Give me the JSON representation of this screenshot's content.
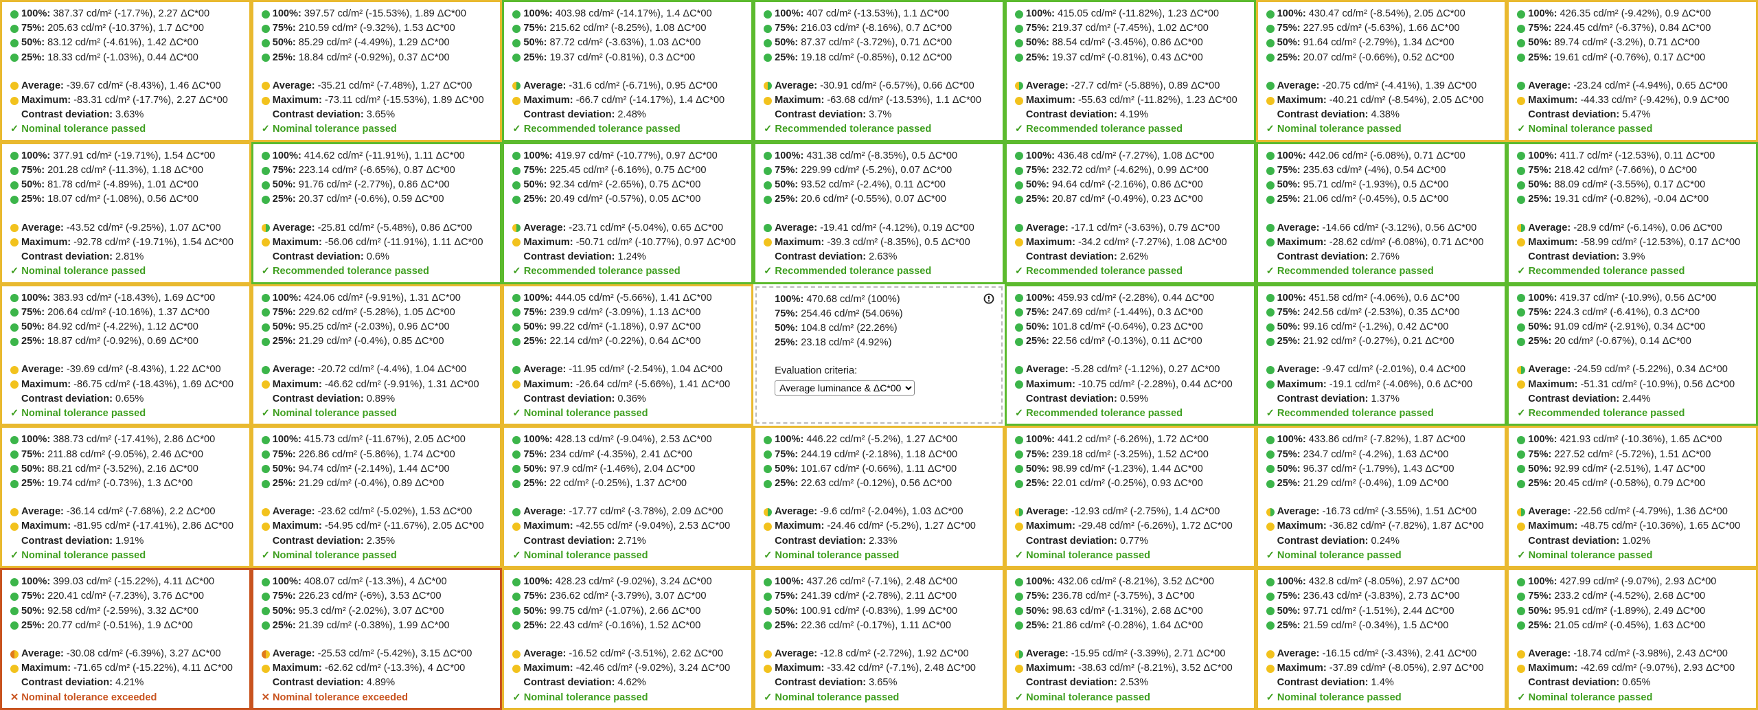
{
  "labels": [
    "100%:",
    "75%:",
    "50%:",
    "25%:",
    "Average:",
    "Maximum:",
    "Contrast deviation:"
  ],
  "rows": [
    [
      {
        "border": "y",
        "dots": "ggggyy",
        "values": [
          "387.37 cd/m² (-17.7%), 2.27 ΔC*00",
          "205.63 cd/m² (-10.37%), 1.7 ΔC*00",
          "83.12 cd/m² (-4.61%), 1.42 ΔC*00",
          "18.33 cd/m² (-1.03%), 0.44 ΔC*00",
          "-39.67 cd/m² (-8.43%), 1.46 ΔC*00",
          "-83.31 cd/m² (-17.7%), 2.27 ΔC*00",
          "3.63%"
        ],
        "status": "✓ Nominal tolerance passed"
      },
      {
        "border": "y",
        "dots": "ggggyy",
        "values": [
          "397.57 cd/m² (-15.53%), 1.89 ΔC*00",
          "210.59 cd/m² (-9.32%), 1.53 ΔC*00",
          "85.29 cd/m² (-4.49%), 1.29 ΔC*00",
          "18.84 cd/m² (-0.92%), 0.37 ΔC*00",
          "-35.21 cd/m² (-7.48%), 1.27 ΔC*00",
          "-73.11 cd/m² (-15.53%), 1.89 ΔC*00",
          "3.65%"
        ],
        "status": "✓ Nominal tolerance passed"
      },
      {
        "border": "g",
        "dots": "gggghy",
        "values": [
          "403.98 cd/m² (-14.17%), 1.4 ΔC*00",
          "215.62 cd/m² (-8.25%), 1.08 ΔC*00",
          "87.72 cd/m² (-3.63%), 1.03 ΔC*00",
          "19.37 cd/m² (-0.81%), 0.3 ΔC*00",
          "-31.6 cd/m² (-6.71%), 0.95 ΔC*00",
          "-66.7 cd/m² (-14.17%), 1.4 ΔC*00",
          "2.48%"
        ],
        "status": "✓ Recommended tolerance passed"
      },
      {
        "border": "g",
        "dots": "gggghy",
        "values": [
          "407 cd/m² (-13.53%), 1.1 ΔC*00",
          "216.03 cd/m² (-8.16%), 0.7 ΔC*00",
          "87.37 cd/m² (-3.72%), 0.71 ΔC*00",
          "19.18 cd/m² (-0.85%), 0.12 ΔC*00",
          "-30.91 cd/m² (-6.57%), 0.66 ΔC*00",
          "-63.68 cd/m² (-13.53%), 1.1 ΔC*00",
          "3.7%"
        ],
        "status": "✓ Recommended tolerance passed"
      },
      {
        "border": "g",
        "dots": "gggghy",
        "values": [
          "415.05 cd/m² (-11.82%), 1.23 ΔC*00",
          "219.37 cd/m² (-7.45%), 1.02 ΔC*00",
          "88.54 cd/m² (-3.45%), 0.86 ΔC*00",
          "19.37 cd/m² (-0.81%), 0.43 ΔC*00",
          "-27.7 cd/m² (-5.88%), 0.89 ΔC*00",
          "-55.63 cd/m² (-11.82%), 1.23 ΔC*00",
          "4.19%"
        ],
        "status": "✓ Recommended tolerance passed"
      },
      {
        "border": "y",
        "dots": "gggggy",
        "values": [
          "430.47 cd/m² (-8.54%), 2.05 ΔC*00",
          "227.95 cd/m² (-5.63%), 1.66 ΔC*00",
          "91.64 cd/m² (-2.79%), 1.34 ΔC*00",
          "20.07 cd/m² (-0.66%), 0.52 ΔC*00",
          "-20.75 cd/m² (-4.41%), 1.39 ΔC*00",
          "-40.21 cd/m² (-8.54%), 2.05 ΔC*00",
          "4.38%"
        ],
        "status": "✓ Nominal tolerance passed"
      },
      {
        "border": "y",
        "dots": "gggggy",
        "values": [
          "426.35 cd/m² (-9.42%), 0.9 ΔC*00",
          "224.45 cd/m² (-6.37%), 0.84 ΔC*00",
          "89.74 cd/m² (-3.2%), 0.71 ΔC*00",
          "19.61 cd/m² (-0.76%), 0.17 ΔC*00",
          "-23.24 cd/m² (-4.94%), 0.65 ΔC*00",
          "-44.33 cd/m² (-9.42%), 0.9 ΔC*00",
          "5.47%"
        ],
        "status": "✓ Nominal tolerance passed"
      }
    ],
    [
      {
        "border": "y",
        "dots": "ggggyy",
        "values": [
          "377.91 cd/m² (-19.71%), 1.54 ΔC*00",
          "201.28 cd/m² (-11.3%), 1.18 ΔC*00",
          "81.78 cd/m² (-4.89%), 1.01 ΔC*00",
          "18.07 cd/m² (-1.08%), 0.56 ΔC*00",
          "-43.52 cd/m² (-9.25%), 1.07 ΔC*00",
          "-92.78 cd/m² (-19.71%), 1.54 ΔC*00",
          "2.81%"
        ],
        "status": "✓ Nominal tolerance passed"
      },
      {
        "border": "g",
        "dots": "gggghy",
        "values": [
          "414.62 cd/m² (-11.91%), 1.11 ΔC*00",
          "223.14 cd/m² (-6.65%), 0.87 ΔC*00",
          "91.76 cd/m² (-2.77%), 0.86 ΔC*00",
          "20.37 cd/m² (-0.6%), 0.59 ΔC*00",
          "-25.81 cd/m² (-5.48%), 0.86 ΔC*00",
          "-56.06 cd/m² (-11.91%), 1.11 ΔC*00",
          "0.6%"
        ],
        "status": "✓ Recommended tolerance passed"
      },
      {
        "border": "g",
        "dots": "gggghy",
        "values": [
          "419.97 cd/m² (-10.77%), 0.97 ΔC*00",
          "225.45 cd/m² (-6.16%), 0.75 ΔC*00",
          "92.34 cd/m² (-2.65%), 0.75 ΔC*00",
          "20.49 cd/m² (-0.57%), 0.05 ΔC*00",
          "-23.71 cd/m² (-5.04%), 0.65 ΔC*00",
          "-50.71 cd/m² (-10.77%), 0.97 ΔC*00",
          "1.24%"
        ],
        "status": "✓ Recommended tolerance passed"
      },
      {
        "border": "g",
        "dots": "gggggy",
        "values": [
          "431.38 cd/m² (-8.35%), 0.5 ΔC*00",
          "229.99 cd/m² (-5.2%), 0.07 ΔC*00",
          "93.52 cd/m² (-2.4%), 0.11 ΔC*00",
          "20.6 cd/m² (-0.55%), 0.07 ΔC*00",
          "-19.41 cd/m² (-4.12%), 0.19 ΔC*00",
          "-39.3 cd/m² (-8.35%), 0.5 ΔC*00",
          "2.63%"
        ],
        "status": "✓ Recommended tolerance passed"
      },
      {
        "border": "g",
        "dots": "gggggy",
        "values": [
          "436.48 cd/m² (-7.27%), 1.08 ΔC*00",
          "232.72 cd/m² (-4.62%), 0.99 ΔC*00",
          "94.64 cd/m² (-2.16%), 0.86 ΔC*00",
          "20.87 cd/m² (-0.49%), 0.23 ΔC*00",
          "-17.1 cd/m² (-3.63%), 0.79 ΔC*00",
          "-34.2 cd/m² (-7.27%), 1.08 ΔC*00",
          "2.62%"
        ],
        "status": "✓ Recommended tolerance passed"
      },
      {
        "border": "g",
        "dots": "gggggg",
        "values": [
          "442.06 cd/m² (-6.08%), 0.71 ΔC*00",
          "235.63 cd/m² (-4%), 0.54 ΔC*00",
          "95.71 cd/m² (-1.93%), 0.5 ΔC*00",
          "21.06 cd/m² (-0.45%), 0.5 ΔC*00",
          "-14.66 cd/m² (-3.12%), 0.56 ΔC*00",
          "-28.62 cd/m² (-6.08%), 0.71 ΔC*00",
          "2.76%"
        ],
        "status": "✓ Recommended tolerance passed"
      },
      {
        "border": "g",
        "dots": "gggghy",
        "values": [
          "411.7 cd/m² (-12.53%), 0.11 ΔC*00",
          "218.42 cd/m² (-7.66%), 0 ΔC*00",
          "88.09 cd/m² (-3.55%), 0.17 ΔC*00",
          "19.31 cd/m² (-0.82%), -0.04 ΔC*00",
          "-28.9 cd/m² (-6.14%), 0.06 ΔC*00",
          "-58.99 cd/m² (-12.53%), 0.17 ΔC*00",
          "3.9%"
        ],
        "status": "✓ Recommended tolerance passed"
      }
    ],
    [
      {
        "border": "y",
        "dots": "ggggyy",
        "values": [
          "383.93 cd/m² (-18.43%), 1.69 ΔC*00",
          "206.64 cd/m² (-10.16%), 1.37 ΔC*00",
          "84.92 cd/m² (-4.22%), 1.12 ΔC*00",
          "18.87 cd/m² (-0.92%), 0.69 ΔC*00",
          "-39.69 cd/m² (-8.43%), 1.22 ΔC*00",
          "-86.75 cd/m² (-18.43%), 1.69 ΔC*00",
          "0.65%"
        ],
        "status": "✓ Nominal tolerance passed"
      },
      {
        "border": "y",
        "dots": "gggggy",
        "values": [
          "424.06 cd/m² (-9.91%), 1.31 ΔC*00",
          "229.62 cd/m² (-5.28%), 1.05 ΔC*00",
          "95.25 cd/m² (-2.03%), 0.96 ΔC*00",
          "21.29 cd/m² (-0.4%), 0.85 ΔC*00",
          "-20.72 cd/m² (-4.4%), 1.04 ΔC*00",
          "-46.62 cd/m² (-9.91%), 1.31 ΔC*00",
          "0.89%"
        ],
        "status": "✓ Nominal tolerance passed"
      },
      {
        "border": "y",
        "dots": "gggggy",
        "values": [
          "444.05 cd/m² (-5.66%), 1.41 ΔC*00",
          "239.9 cd/m² (-3.09%), 1.13 ΔC*00",
          "99.22 cd/m² (-1.18%), 0.97 ΔC*00",
          "22.14 cd/m² (-0.22%), 0.64 ΔC*00",
          "-11.95 cd/m² (-2.54%), 1.04 ΔC*00",
          "-26.64 cd/m² (-5.66%), 1.41 ΔC*00",
          "0.36%"
        ],
        "status": "✓ Nominal tolerance passed"
      },
      {
        "reference": {
          "values": [
            "470.68 cd/m² (100%)",
            "254.46 cd/m² (54.06%)",
            "104.8 cd/m² (22.26%)",
            "23.18 cd/m² (4.92%)"
          ],
          "criteria_label": "Evaluation criteria:",
          "criteria": "Average luminance & ΔC*00"
        }
      },
      {
        "border": "g",
        "dots": "gggggg",
        "values": [
          "459.93 cd/m² (-2.28%), 0.44 ΔC*00",
          "247.69 cd/m² (-1.44%), 0.3 ΔC*00",
          "101.8 cd/m² (-0.64%), 0.23 ΔC*00",
          "22.56 cd/m² (-0.13%), 0.11 ΔC*00",
          "-5.28 cd/m² (-1.12%), 0.27 ΔC*00",
          "-10.75 cd/m² (-2.28%), 0.44 ΔC*00",
          "0.59%"
        ],
        "status": "✓ Recommended tolerance passed"
      },
      {
        "border": "g",
        "dots": "gggggg",
        "values": [
          "451.58 cd/m² (-4.06%), 0.6 ΔC*00",
          "242.56 cd/m² (-2.53%), 0.35 ΔC*00",
          "99.16 cd/m² (-1.2%), 0.42 ΔC*00",
          "21.92 cd/m² (-0.27%), 0.21 ΔC*00",
          "-9.47 cd/m² (-2.01%), 0.4 ΔC*00",
          "-19.1 cd/m² (-4.06%), 0.6 ΔC*00",
          "1.37%"
        ],
        "status": "✓ Recommended tolerance passed"
      },
      {
        "border": "g",
        "dots": "gggghy",
        "values": [
          "419.37 cd/m² (-10.9%), 0.56 ΔC*00",
          "224.3 cd/m² (-6.41%), 0.3 ΔC*00",
          "91.09 cd/m² (-2.91%), 0.34 ΔC*00",
          "20 cd/m² (-0.67%), 0.14 ΔC*00",
          "-24.59 cd/m² (-5.22%), 0.34 ΔC*00",
          "-51.31 cd/m² (-10.9%), 0.56 ΔC*00",
          "2.44%"
        ],
        "status": "✓ Recommended tolerance passed"
      }
    ],
    [
      {
        "border": "y",
        "dots": "ggggyy",
        "values": [
          "388.73 cd/m² (-17.41%), 2.86 ΔC*00",
          "211.88 cd/m² (-9.05%), 2.46 ΔC*00",
          "88.21 cd/m² (-3.52%), 2.16 ΔC*00",
          "19.74 cd/m² (-0.73%), 1.3 ΔC*00",
          "-36.14 cd/m² (-7.68%), 2.2 ΔC*00",
          "-81.95 cd/m² (-17.41%), 2.86 ΔC*00",
          "1.91%"
        ],
        "status": "✓ Nominal tolerance passed"
      },
      {
        "border": "y",
        "dots": "ggggyy",
        "values": [
          "415.73 cd/m² (-11.67%), 2.05 ΔC*00",
          "226.86 cd/m² (-5.86%), 1.74 ΔC*00",
          "94.74 cd/m² (-2.14%), 1.44 ΔC*00",
          "21.29 cd/m² (-0.4%), 0.89 ΔC*00",
          "-23.62 cd/m² (-5.02%), 1.53 ΔC*00",
          "-54.95 cd/m² (-11.67%), 2.05 ΔC*00",
          "2.35%"
        ],
        "status": "✓ Nominal tolerance passed"
      },
      {
        "border": "y",
        "dots": "gggggy",
        "values": [
          "428.13 cd/m² (-9.04%), 2.53 ΔC*00",
          "234 cd/m² (-4.35%), 2.41 ΔC*00",
          "97.9 cd/m² (-1.46%), 2.04 ΔC*00",
          "22 cd/m² (-0.25%), 1.37 ΔC*00",
          "-17.77 cd/m² (-3.78%), 2.09 ΔC*00",
          "-42.55 cd/m² (-9.04%), 2.53 ΔC*00",
          "2.71%"
        ],
        "status": "✓ Nominal tolerance passed"
      },
      {
        "border": "y",
        "dots": "gggghy",
        "values": [
          "446.22 cd/m² (-5.2%), 1.27 ΔC*00",
          "244.19 cd/m² (-2.18%), 1.18 ΔC*00",
          "101.67 cd/m² (-0.66%), 1.11 ΔC*00",
          "22.63 cd/m² (-0.12%), 0.56 ΔC*00",
          "-9.6 cd/m² (-2.04%), 1.03 ΔC*00",
          "-24.46 cd/m² (-5.2%), 1.27 ΔC*00",
          "2.33%"
        ],
        "status": "✓ Nominal tolerance passed"
      },
      {
        "border": "y",
        "dots": "gggghy",
        "values": [
          "441.2 cd/m² (-6.26%), 1.72 ΔC*00",
          "239.18 cd/m² (-3.25%), 1.52 ΔC*00",
          "98.99 cd/m² (-1.23%), 1.44 ΔC*00",
          "22.01 cd/m² (-0.25%), 0.93 ΔC*00",
          "-12.93 cd/m² (-2.75%), 1.4 ΔC*00",
          "-29.48 cd/m² (-6.26%), 1.72 ΔC*00",
          "0.77%"
        ],
        "status": "✓ Nominal tolerance passed"
      },
      {
        "border": "y",
        "dots": "gggghy",
        "values": [
          "433.86 cd/m² (-7.82%), 1.87 ΔC*00",
          "234.7 cd/m² (-4.2%), 1.63 ΔC*00",
          "96.37 cd/m² (-1.79%), 1.43 ΔC*00",
          "21.29 cd/m² (-0.4%), 1.09 ΔC*00",
          "-16.73 cd/m² (-3.55%), 1.51 ΔC*00",
          "-36.82 cd/m² (-7.82%), 1.87 ΔC*00",
          "0.24%"
        ],
        "status": "✓ Nominal tolerance passed"
      },
      {
        "border": "y",
        "dots": "gggghy",
        "values": [
          "421.93 cd/m² (-10.36%), 1.65 ΔC*00",
          "227.52 cd/m² (-5.72%), 1.51 ΔC*00",
          "92.99 cd/m² (-2.51%), 1.47 ΔC*00",
          "20.45 cd/m² (-0.58%), 0.79 ΔC*00",
          "-22.56 cd/m² (-4.79%), 1.36 ΔC*00",
          "-48.75 cd/m² (-10.36%), 1.65 ΔC*00",
          "1.02%"
        ],
        "status": "✓ Nominal tolerance passed"
      }
    ],
    [
      {
        "border": "r",
        "dots": "ggggoy",
        "values": [
          "399.03 cd/m² (-15.22%), 4.11 ΔC*00",
          "220.41 cd/m² (-7.23%), 3.76 ΔC*00",
          "92.58 cd/m² (-2.59%), 3.32 ΔC*00",
          "20.77 cd/m² (-0.51%), 1.9 ΔC*00",
          "-30.08 cd/m² (-6.39%), 3.27 ΔC*00",
          "-71.65 cd/m² (-15.22%), 4.11 ΔC*00",
          "4.21%"
        ],
        "status": "✕ Nominal tolerance exceeded"
      },
      {
        "border": "r",
        "dots": "ggggoy",
        "values": [
          "408.07 cd/m² (-13.3%), 4 ΔC*00",
          "226.23 cd/m² (-6%), 3.53 ΔC*00",
          "95.3 cd/m² (-2.02%), 3.07 ΔC*00",
          "21.39 cd/m² (-0.38%), 1.99 ΔC*00",
          "-25.53 cd/m² (-5.42%), 3.15 ΔC*00",
          "-62.62 cd/m² (-13.3%), 4 ΔC*00",
          "4.89%"
        ],
        "status": "✕ Nominal tolerance exceeded"
      },
      {
        "border": "y",
        "dots": "ggggyy",
        "values": [
          "428.23 cd/m² (-9.02%), 3.24 ΔC*00",
          "236.62 cd/m² (-3.79%), 3.07 ΔC*00",
          "99.75 cd/m² (-1.07%), 2.66 ΔC*00",
          "22.43 cd/m² (-0.16%), 1.52 ΔC*00",
          "-16.52 cd/m² (-3.51%), 2.62 ΔC*00",
          "-42.46 cd/m² (-9.02%), 3.24 ΔC*00",
          "4.62%"
        ],
        "status": "✓ Nominal tolerance passed"
      },
      {
        "border": "y",
        "dots": "ggggyy",
        "values": [
          "437.26 cd/m² (-7.1%), 2.48 ΔC*00",
          "241.39 cd/m² (-2.78%), 2.11 ΔC*00",
          "100.91 cd/m² (-0.83%), 1.99 ΔC*00",
          "22.36 cd/m² (-0.17%), 1.11 ΔC*00",
          "-12.8 cd/m² (-2.72%), 1.92 ΔC*00",
          "-33.42 cd/m² (-7.1%), 2.48 ΔC*00",
          "3.65%"
        ],
        "status": "✓ Nominal tolerance passed"
      },
      {
        "border": "y",
        "dots": "gggghy",
        "values": [
          "432.06 cd/m² (-8.21%), 3.52 ΔC*00",
          "236.78 cd/m² (-3.75%), 3 ΔC*00",
          "98.63 cd/m² (-1.31%), 2.68 ΔC*00",
          "21.86 cd/m² (-0.28%), 1.64 ΔC*00",
          "-15.95 cd/m² (-3.39%), 2.71 ΔC*00",
          "-38.63 cd/m² (-8.21%), 3.52 ΔC*00",
          "2.53%"
        ],
        "status": "✓ Nominal tolerance passed"
      },
      {
        "border": "y",
        "dots": "ggggyy",
        "values": [
          "432.8 cd/m² (-8.05%), 2.97 ΔC*00",
          "236.43 cd/m² (-3.83%), 2.73 ΔC*00",
          "97.71 cd/m² (-1.51%), 2.44 ΔC*00",
          "21.59 cd/m² (-0.34%), 1.5 ΔC*00",
          "-16.15 cd/m² (-3.43%), 2.41 ΔC*00",
          "-37.89 cd/m² (-8.05%), 2.97 ΔC*00",
          "1.4%"
        ],
        "status": "✓ Nominal tolerance passed"
      },
      {
        "border": "y",
        "dots": "ggggyy",
        "values": [
          "427.99 cd/m² (-9.07%), 2.93 ΔC*00",
          "233.2 cd/m² (-4.52%), 2.68 ΔC*00",
          "95.91 cd/m² (-1.89%), 2.49 ΔC*00",
          "21.05 cd/m² (-0.45%), 1.63 ΔC*00",
          "-18.74 cd/m² (-3.98%), 2.43 ΔC*00",
          "-42.69 cd/m² (-9.07%), 2.93 ΔC*00",
          "0.65%"
        ],
        "status": "✓ Nominal tolerance passed"
      }
    ]
  ]
}
